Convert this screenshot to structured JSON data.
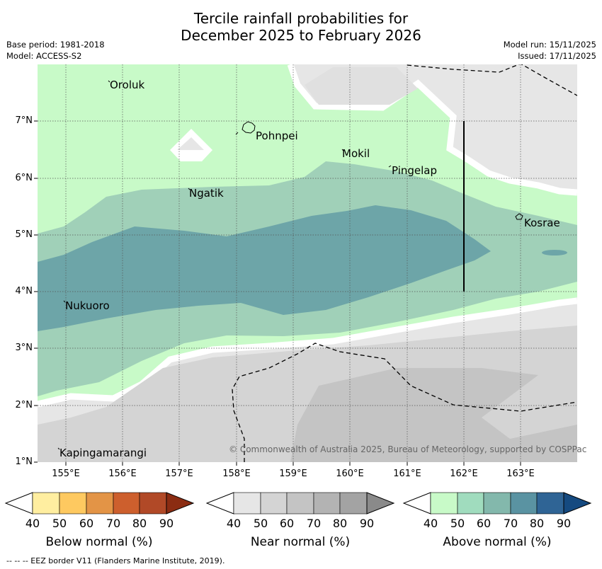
{
  "title": {
    "line1": "Tercile rainfall probabilities for",
    "line2": "December 2025 to February 2026"
  },
  "meta_left": {
    "base_period": "Base period: 1981-2018",
    "model": "Model: ACCESS-S2"
  },
  "meta_right": {
    "model_run": "Model run: 15/11/2025",
    "issued": "Issued: 17/11/2025"
  },
  "axes": {
    "lat_labels": [
      "7°N",
      "6°N",
      "5°N",
      "4°N",
      "3°N",
      "2°N",
      "1°N"
    ],
    "lon_labels": [
      "155°E",
      "156°E",
      "157°E",
      "158°E",
      "159°E",
      "160°E",
      "161°E",
      "162°E",
      "163°E"
    ]
  },
  "places": {
    "oroluk": "Oroluk",
    "pohnpei": "Pohnpei",
    "mokil": "Mokil",
    "pingelap": "Pingelap",
    "ngatik": "Ngatik",
    "kosrae": "Kosrae",
    "nukuoro": "Nukuoro",
    "kapingamarangi": "Kapingamarangi"
  },
  "copyright": "© Commonwealth of Australia 2025, Bureau of Meteorology, supported by COSPPac",
  "legends": {
    "ticks": [
      "40",
      "50",
      "60",
      "70",
      "80",
      "90"
    ],
    "below": {
      "title": "Below normal (%)",
      "colors": [
        "#ffeea0",
        "#fec960",
        "#e39446",
        "#cd5f2d",
        "#b14927",
        "#8b2c12"
      ]
    },
    "near": {
      "title": "Near normal (%)",
      "colors": [
        "#e6e6e6",
        "#d4d4d4",
        "#c4c4c4",
        "#b3b3b3",
        "#a3a3a3",
        "#8a8a8a"
      ]
    },
    "above": {
      "title": "Above normal (%)",
      "colors": [
        "#c8fac8",
        "#a0dcbe",
        "#83b8ac",
        "#5a93a2",
        "#2f6495",
        "#154a80"
      ]
    }
  },
  "footer": "-- -- -- EEZ border V11 (Flanders Marine Institute, 2019)."
}
